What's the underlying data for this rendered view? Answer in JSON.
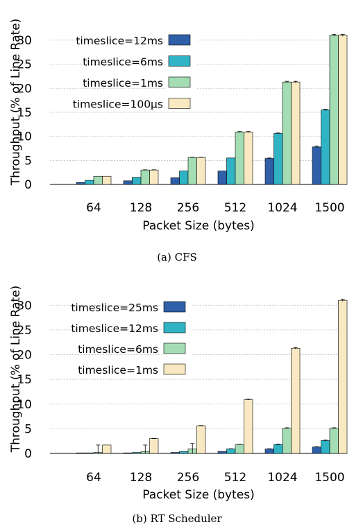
{
  "chart_data": [
    {
      "type": "bar",
      "caption": "(a) CFS",
      "xlabel": "Packet Size (bytes)",
      "ylabel": "Throughput (% of Line Rate)",
      "categories": [
        "64",
        "128",
        "256",
        "512",
        "1024",
        "1500"
      ],
      "ylim": [
        0,
        32
      ],
      "yticks": [
        0,
        5,
        10,
        15,
        20,
        25,
        30
      ],
      "grid": true,
      "legend_position": "top-left",
      "series": [
        {
          "name": "timeslice=12ms",
          "color": "#2f5fa8",
          "values": [
            0.4,
            0.75,
            1.4,
            2.8,
            5.4,
            7.8
          ],
          "error": [
            0,
            0,
            0,
            0,
            0.1,
            0.15
          ]
        },
        {
          "name": "timeslice=6ms",
          "color": "#2fb3c5",
          "values": [
            0.85,
            1.5,
            2.8,
            5.5,
            10.6,
            15.5
          ],
          "error": [
            0,
            0,
            0,
            0,
            0.1,
            0.15
          ]
        },
        {
          "name": "timeslice=1ms",
          "color": "#a4ddb4",
          "values": [
            1.7,
            3.0,
            5.6,
            10.9,
            21.3,
            31.0
          ],
          "error": [
            0,
            0.05,
            0.05,
            0.1,
            0.15,
            0.2
          ]
        },
        {
          "name": "timeslice=100µs",
          "color": "#f8e9c2",
          "values": [
            1.7,
            3.0,
            5.6,
            10.9,
            21.3,
            31.0
          ],
          "error": [
            0,
            0.05,
            0.05,
            0.1,
            0.15,
            0.2
          ]
        }
      ]
    },
    {
      "type": "bar",
      "caption": "(b) RT Scheduler",
      "xlabel": "Packet Size (bytes)",
      "ylabel": "Throughput (% of Line Rate)",
      "categories": [
        "64",
        "128",
        "256",
        "512",
        "1024",
        "1500"
      ],
      "ylim": [
        0,
        32
      ],
      "yticks": [
        0,
        5,
        10,
        15,
        20,
        25,
        30
      ],
      "grid": true,
      "legend_position": "top-left",
      "series": [
        {
          "name": "timeslice=25ms",
          "color": "#2f5fa8",
          "values": [
            0.05,
            0.1,
            0.2,
            0.4,
            0.9,
            1.3
          ],
          "error": [
            0,
            0,
            0,
            0,
            0.05,
            0.05
          ]
        },
        {
          "name": "timeslice=12ms",
          "color": "#2fb3c5",
          "values": [
            0.1,
            0.2,
            0.4,
            0.9,
            1.8,
            2.6
          ],
          "error": [
            0,
            0,
            0,
            0.05,
            0.1,
            0.1
          ]
        },
        {
          "name": "timeslice=6ms",
          "color": "#a4ddb4",
          "values": [
            0.2,
            0.4,
            0.9,
            1.8,
            5.1,
            5.1
          ],
          "error": [
            1.5,
            1.3,
            1.1,
            0.05,
            0.1,
            0.1
          ]
        },
        {
          "name": "timeslice=1ms",
          "color": "#f8e9c2",
          "values": [
            1.7,
            3.0,
            5.6,
            10.9,
            21.3,
            31.0
          ],
          "error": [
            0,
            0.05,
            0.05,
            0.1,
            0.15,
            0.2
          ]
        }
      ]
    }
  ]
}
